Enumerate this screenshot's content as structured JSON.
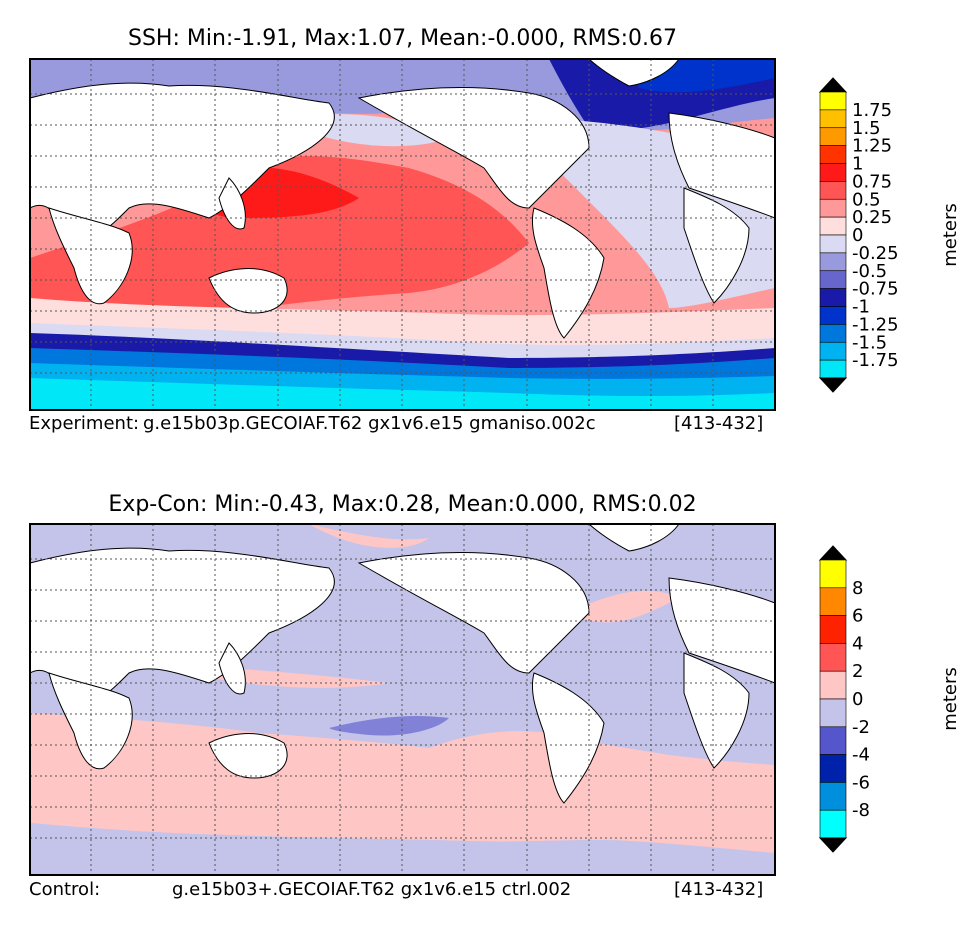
{
  "panels": [
    {
      "title": "SSH: Min:-1.91, Max:1.07, Mean:-0.000, RMS:0.67",
      "caption_left": "Experiment:",
      "caption_mid": "g.e15b03p.GECOIAF.T62 gx1v6.e15 gmaniso.002c",
      "caption_right": "[413-432]",
      "colorbar": {
        "label": "meters",
        "ticks": [
          "1.75",
          "1.5",
          "1.25",
          "1",
          "0.75",
          "0.5",
          "0.25",
          "0",
          "-0.25",
          "-0.5",
          "-0.75",
          "-1",
          "-1.25",
          "-1.5",
          "-1.75"
        ],
        "colors": [
          "#ffff00",
          "#ffc000",
          "#ff9900",
          "#ff3300",
          "#ff1a1a",
          "#ff5555",
          "#ff9999",
          "#ffdede",
          "#dadaf2",
          "#9999dd",
          "#6666cc",
          "#1a1aa8",
          "#0033cc",
          "#0077dd",
          "#00b2f0",
          "#00e8f8"
        ],
        "over": "#000000",
        "under": "#000000"
      }
    },
    {
      "title": "Exp-Con: Min:-0.43, Max:0.28, Mean:0.000, RMS:0.02",
      "caption_left": "Control:",
      "caption_mid": "g.e15b03+.GECOIAF.T62 gx1v6.e15 ctrl.002",
      "caption_right": "[413-432]",
      "colorbar": {
        "label": "meters",
        "ticks": [
          "8",
          "6",
          "4",
          "2",
          "0",
          "-2",
          "-4",
          "-6",
          "-8"
        ],
        "colors": [
          "#ffff00",
          "#ff8800",
          "#ff2200",
          "#ff5555",
          "#ffc6c6",
          "#c4c4ea",
          "#5555cc",
          "#0022aa",
          "#008fdd",
          "#00ffff"
        ],
        "over": "#000000",
        "under": "#000000"
      }
    }
  ],
  "chart_data": [
    {
      "type": "heatmap",
      "title": "SSH: Min:-1.91, Max:1.07, Mean:-0.000, RMS:0.67",
      "variable": "SSH",
      "min": -1.91,
      "max": 1.07,
      "mean": -0.0,
      "rms": 0.67,
      "units": "meters",
      "levels": [
        -1.75,
        -1.5,
        -1.25,
        -1,
        -0.75,
        -0.5,
        -0.25,
        0,
        0.25,
        0.5,
        0.75,
        1,
        1.25,
        1.5,
        1.75
      ],
      "grid": true
    },
    {
      "type": "heatmap",
      "title": "Exp-Con: Min:-0.43, Max:0.28, Mean:0.000, RMS:0.02",
      "variable": "Exp-Con",
      "min": -0.43,
      "max": 0.28,
      "mean": 0.0,
      "rms": 0.02,
      "units": "meters",
      "levels": [
        -8,
        -6,
        -4,
        -2,
        0,
        2,
        4,
        6,
        8
      ],
      "grid": true
    }
  ]
}
